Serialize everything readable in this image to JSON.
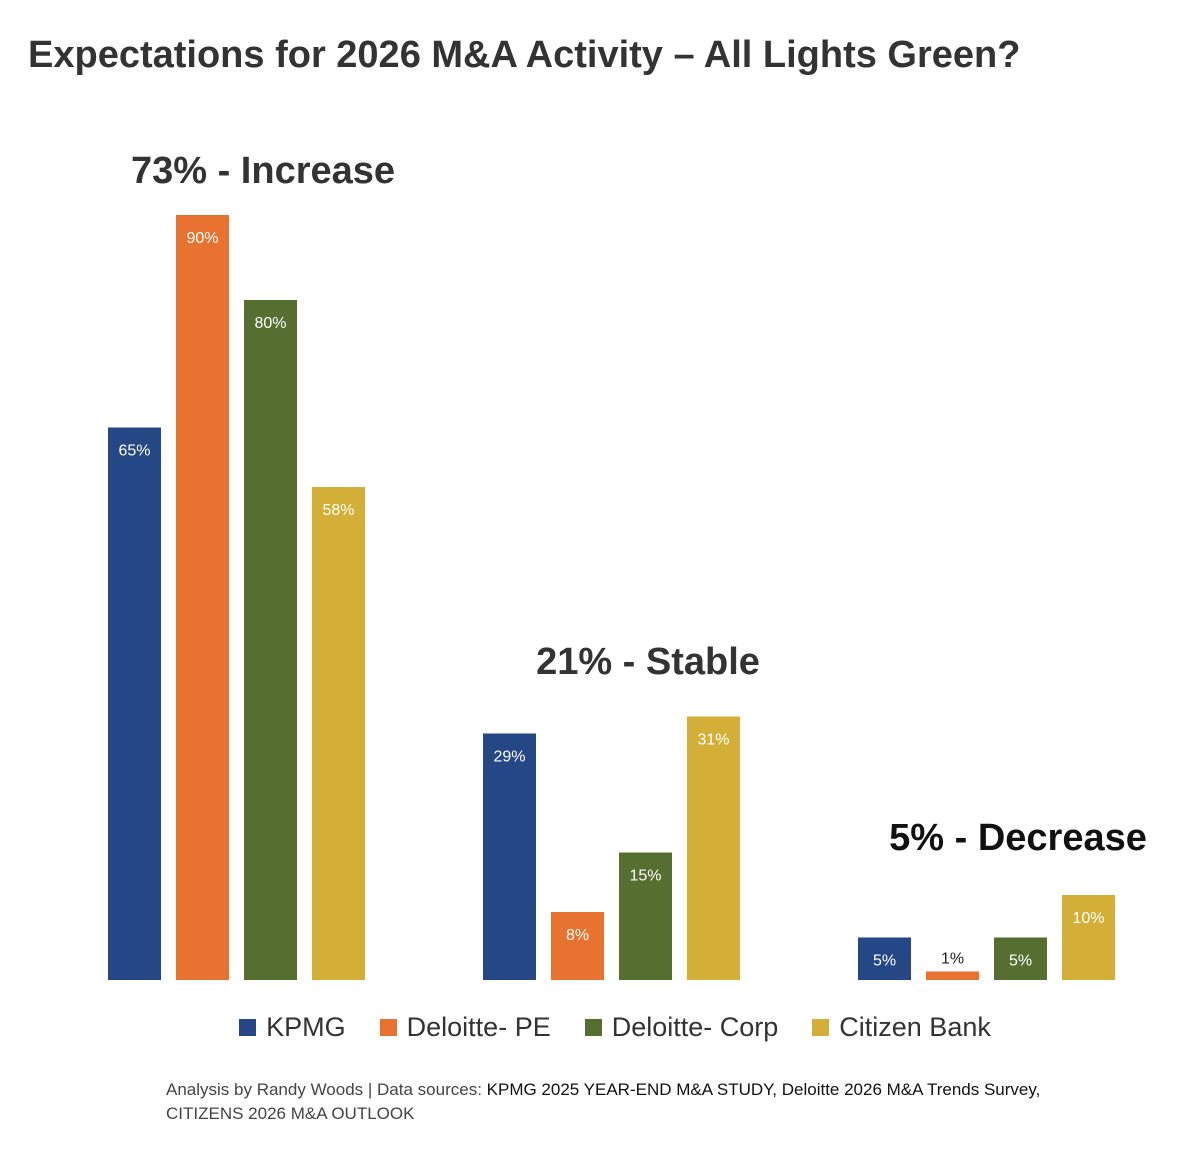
{
  "chart_data": {
    "type": "bar",
    "title": "Expectations for 2026 M&A Activity – All Lights Green?",
    "categories": [
      "Increase",
      "Stable",
      "Decrease"
    ],
    "group_labels": [
      "73% - Increase",
      "21% - Stable",
      "5% - Decrease"
    ],
    "series": [
      {
        "name": "KPMG",
        "color": "#264785",
        "values": [
          65,
          29,
          5
        ],
        "labels": [
          "65%",
          "29%",
          "5%"
        ]
      },
      {
        "name": "Deloitte- PE",
        "color": "#E87230",
        "values": [
          90,
          8,
          1
        ],
        "labels": [
          "90%",
          "8%",
          "1%"
        ]
      },
      {
        "name": "Deloitte- Corp",
        "color": "#566E30",
        "values": [
          80,
          15,
          5
        ],
        "labels": [
          "80%",
          "15%",
          "5%"
        ]
      },
      {
        "name": "Citizen Bank",
        "color": "#D4AF37",
        "values": [
          58,
          31,
          10
        ],
        "labels": [
          "58%",
          "31%",
          "10%"
        ]
      }
    ],
    "ylim": [
      0,
      90
    ],
    "xlabel": "",
    "ylabel": "",
    "grid": false,
    "legend_position": "bottom"
  },
  "footer": {
    "credit": "Analysis by Randy Woods | Data sources: ",
    "sources": "KPMG 2025 YEAR-END M&A STUDY, Deloitte 2026 M&A Trends Survey,",
    "sources_line2": "CITIZENS 2026 M&A OUTLOOK"
  }
}
